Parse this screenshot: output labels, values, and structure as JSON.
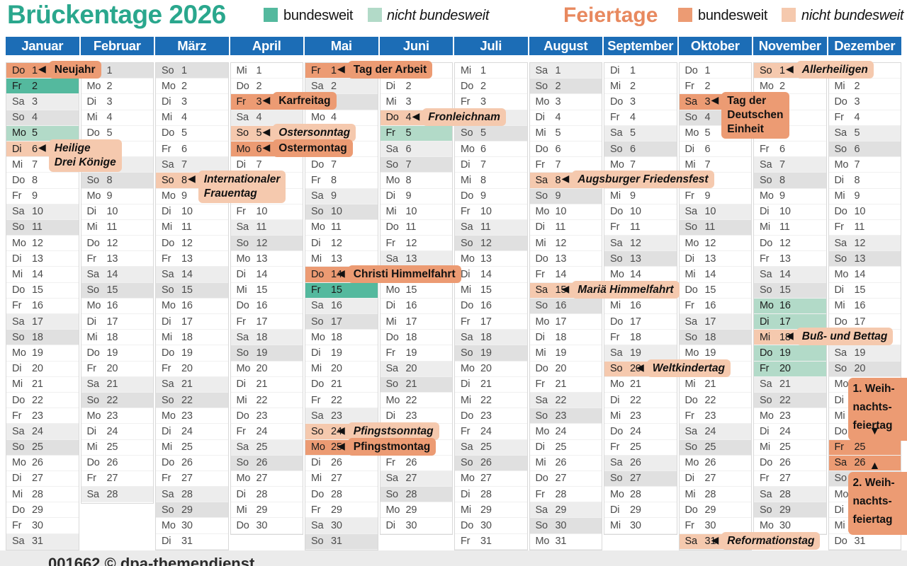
{
  "header": {
    "title": "Brückentage 2026",
    "feiertage_title": "Feiertage",
    "bridge_legend": [
      {
        "label": "bundesweit",
        "italic": false
      },
      {
        "label": "nicht bundesweit",
        "italic": true
      }
    ],
    "holiday_legend": [
      {
        "label": "bundesweit",
        "italic": false
      },
      {
        "label": "nicht bundesweit",
        "italic": true
      }
    ]
  },
  "colors": {
    "title": "#2aa78d",
    "feiertage_title": "#e8895f",
    "month_header": "#1c6db6",
    "holiday_national": "#ec9b73",
    "holiday_regional": "#f5c9ae",
    "bridge_national": "#54b99e",
    "bridge_regional": "#b2dac8",
    "saturday": "#ededed",
    "sunday": "#e0e0e0"
  },
  "weekdays": [
    "Mo",
    "Di",
    "Mi",
    "Do",
    "Fr",
    "Sa",
    "So"
  ],
  "months": [
    {
      "name": "Januar",
      "start": "Do",
      "days": 31,
      "marks": [
        {
          "day": 1,
          "type": "holiday_national",
          "label_lines": [
            "Neujahr"
          ]
        },
        {
          "day": 2,
          "type": "bridge_national"
        },
        {
          "day": 5,
          "type": "bridge_regional"
        },
        {
          "day": 6,
          "type": "holiday_regional",
          "label_lines": [
            "Heilige",
            "Drei Könige"
          ]
        }
      ]
    },
    {
      "name": "Februar",
      "start": "So",
      "days": 28,
      "marks": []
    },
    {
      "name": "März",
      "start": "So",
      "days": 31,
      "marks": [
        {
          "day": 8,
          "type": "holiday_regional",
          "label_lines": [
            "Internationaler",
            "Frauentag"
          ]
        }
      ]
    },
    {
      "name": "April",
      "start": "Mi",
      "days": 30,
      "marks": [
        {
          "day": 3,
          "type": "holiday_national",
          "label_lines": [
            "Karfreitag"
          ]
        },
        {
          "day": 5,
          "type": "holiday_regional",
          "label_lines": [
            "Ostersonntag"
          ]
        },
        {
          "day": 6,
          "type": "holiday_national",
          "label_lines": [
            "Ostermontag"
          ]
        }
      ]
    },
    {
      "name": "Mai",
      "start": "Fr",
      "days": 31,
      "marks": [
        {
          "day": 1,
          "type": "holiday_national",
          "label_lines": [
            "Tag der Arbeit"
          ]
        },
        {
          "day": 14,
          "type": "holiday_national",
          "label_lines": [
            "Christi Himmelfahrt"
          ]
        },
        {
          "day": 15,
          "type": "bridge_national"
        },
        {
          "day": 24,
          "type": "holiday_regional",
          "label_lines": [
            "Pfingstsonntag"
          ]
        },
        {
          "day": 25,
          "type": "holiday_national",
          "label_lines": [
            "Pfingstmontag"
          ]
        }
      ]
    },
    {
      "name": "Juni",
      "start": "Mo",
      "days": 30,
      "marks": [
        {
          "day": 4,
          "type": "holiday_regional",
          "label_lines": [
            "Fronleichnam"
          ]
        },
        {
          "day": 5,
          "type": "bridge_regional"
        }
      ]
    },
    {
      "name": "Juli",
      "start": "Mi",
      "days": 31,
      "marks": []
    },
    {
      "name": "August",
      "start": "Sa",
      "days": 31,
      "marks": [
        {
          "day": 8,
          "type": "holiday_regional",
          "label_lines": [
            "Augsburger Friedensfest"
          ]
        },
        {
          "day": 15,
          "type": "holiday_regional",
          "label_lines": [
            "Mariä Himmelfahrt"
          ]
        }
      ]
    },
    {
      "name": "September",
      "start": "Di",
      "days": 30,
      "marks": [
        {
          "day": 20,
          "type": "holiday_regional",
          "label_lines": [
            "Weltkindertag"
          ]
        }
      ]
    },
    {
      "name": "Oktober",
      "start": "Do",
      "days": 31,
      "marks": [
        {
          "day": 3,
          "type": "holiday_national",
          "label_lines": [
            "Tag der",
            "Deutschen",
            "Einheit"
          ]
        },
        {
          "day": 31,
          "type": "holiday_regional",
          "label_lines": [
            "Reformationstag"
          ]
        }
      ]
    },
    {
      "name": "November",
      "start": "So",
      "days": 30,
      "marks": [
        {
          "day": 1,
          "type": "holiday_regional",
          "label_lines": [
            "Allerheiligen"
          ]
        },
        {
          "day": 16,
          "type": "bridge_regional"
        },
        {
          "day": 17,
          "type": "bridge_regional"
        },
        {
          "day": 18,
          "type": "holiday_regional",
          "label_lines": [
            "Buß- und Bettag"
          ]
        },
        {
          "day": 19,
          "type": "bridge_regional"
        },
        {
          "day": 20,
          "type": "bridge_regional"
        }
      ]
    },
    {
      "name": "Dezember",
      "start": "Di",
      "days": 31,
      "marks": [
        {
          "day": 25,
          "type": "holiday_national",
          "label_lines": [
            "1. Weih-",
            "nachts-",
            "feiertag"
          ],
          "placement": "above"
        },
        {
          "day": 26,
          "type": "holiday_national",
          "label_lines": [
            "2. Weih-",
            "nachts-",
            "feiertag"
          ],
          "placement": "below"
        }
      ]
    }
  ],
  "footer": {
    "text": "001662 © dpa-themendienst"
  }
}
